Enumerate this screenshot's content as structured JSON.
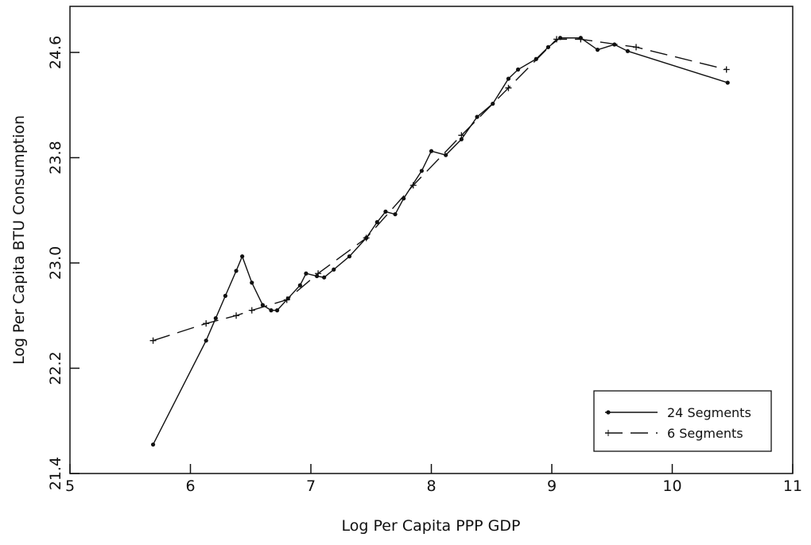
{
  "chart_data": {
    "type": "line",
    "x_label": "Log Per Capita PPP GDP",
    "y_label": "Log Per Capita BTU Consumption",
    "xlim": [
      5,
      11
    ],
    "xticks": [
      5,
      6,
      7,
      8,
      9,
      10,
      11
    ],
    "ylim": [
      21.4,
      24.95
    ],
    "yticks": [
      21.4,
      22.2,
      {
        "value": 23,
        "label": "23.0"
      },
      23.8,
      24.6
    ],
    "legend": "lower right",
    "series": [
      {
        "name": "24 Segments",
        "color": "#111111",
        "style": "solid",
        "marker": "dot",
        "x": [
          5.69,
          6.13,
          6.21,
          6.29,
          6.38,
          6.43,
          6.51,
          6.6,
          6.67,
          6.72,
          6.81,
          6.91,
          6.96,
          7.05,
          7.11,
          7.19,
          7.32,
          7.46,
          7.55,
          7.62,
          7.7,
          7.77,
          7.92,
          8.0,
          8.12,
          8.25,
          8.38,
          8.51,
          8.64,
          8.72,
          8.87,
          8.97,
          9.07,
          9.24,
          9.38,
          9.52,
          9.63,
          10.46
        ],
        "values": [
          21.62,
          22.41,
          22.58,
          22.75,
          22.94,
          23.05,
          22.85,
          22.68,
          22.64,
          22.64,
          22.73,
          22.83,
          22.92,
          22.9,
          22.89,
          22.95,
          23.05,
          23.19,
          23.31,
          23.39,
          23.37,
          23.49,
          23.7,
          23.85,
          23.82,
          23.94,
          24.11,
          24.21,
          24.4,
          24.47,
          24.55,
          24.64,
          24.71,
          24.71,
          24.62,
          24.66,
          24.61,
          24.37
        ]
      },
      {
        "name": "6 Segments",
        "color": "#111111",
        "style": "dashed",
        "marker": "plus",
        "x": [
          5.69,
          6.13,
          6.38,
          6.51,
          6.8,
          7.06,
          7.46,
          7.85,
          8.25,
          8.64,
          9.04,
          9.24,
          9.7,
          10.45
        ],
        "values": [
          22.41,
          22.54,
          22.6,
          22.64,
          22.72,
          22.92,
          23.19,
          23.59,
          23.97,
          24.33,
          24.7,
          24.7,
          24.64,
          24.47
        ]
      }
    ]
  }
}
